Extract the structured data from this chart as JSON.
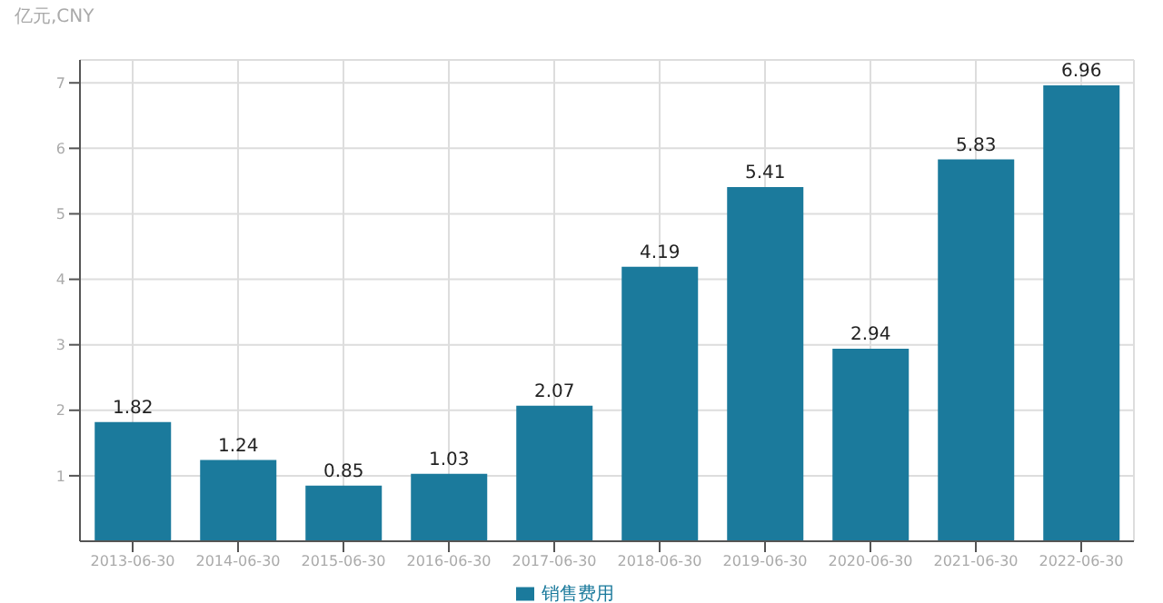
{
  "chart_data": {
    "type": "bar",
    "ylabel": "亿元,CNY",
    "categories": [
      "2013-06-30",
      "2014-06-30",
      "2015-06-30",
      "2016-06-30",
      "2017-06-30",
      "2018-06-30",
      "2019-06-30",
      "2020-06-30",
      "2021-06-30",
      "2022-06-30"
    ],
    "series": [
      {
        "name": "销售费用",
        "color": "#1b7a9c",
        "values": [
          1.82,
          1.24,
          0.85,
          1.03,
          2.07,
          4.19,
          5.41,
          2.94,
          5.83,
          6.96
        ]
      }
    ],
    "ylim": [
      0,
      7.35
    ],
    "yticks": [
      1,
      2,
      3,
      4,
      5,
      6,
      7
    ],
    "grid": true,
    "legend": "bottom",
    "data_labels": true
  }
}
